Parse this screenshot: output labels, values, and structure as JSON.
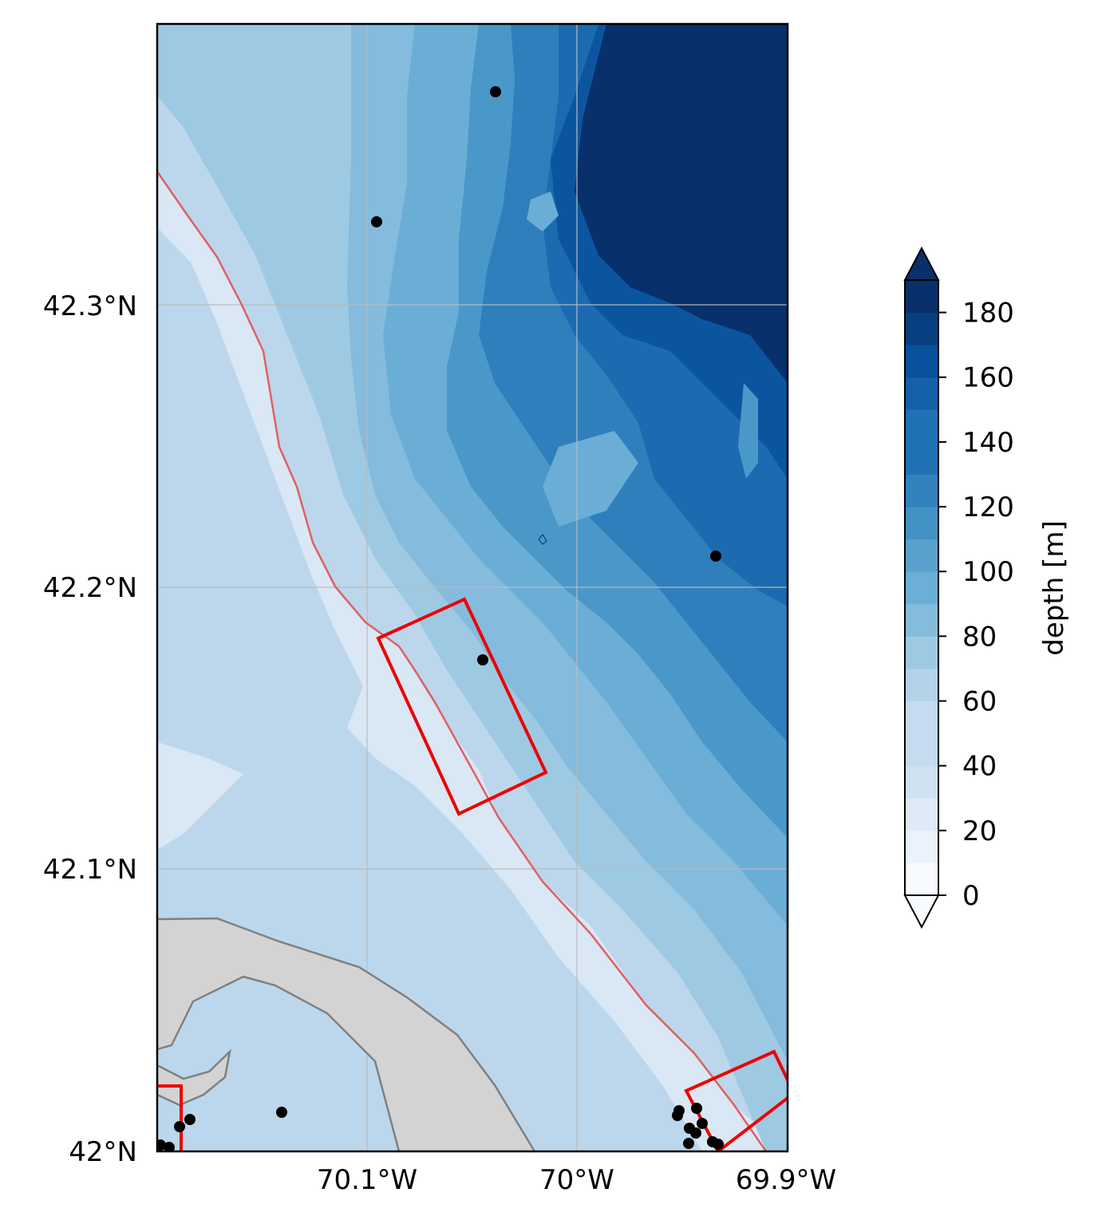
{
  "map": {
    "lat_ticks": [
      "42.3°N",
      "42.2°N",
      "42.1°N",
      "42°N"
    ],
    "lon_ticks": [
      "70.1°W",
      "70°W",
      "69.9°W"
    ],
    "lon_range": [
      -70.2,
      -69.9
    ],
    "lat_range": [
      42.0,
      42.4
    ],
    "colors": {
      "land": "#d3d3d3",
      "coastline": "#808080",
      "boxes": "#ee0000",
      "isobath": "#e06060",
      "points": "#000000",
      "gridlines": "#bbbbbb"
    }
  },
  "colorbar": {
    "label": "depth [m]",
    "ticks": [
      "0",
      "20",
      "40",
      "60",
      "80",
      "100",
      "120",
      "140",
      "160",
      "180"
    ],
    "tick_values": [
      0,
      20,
      40,
      60,
      80,
      100,
      120,
      140,
      160,
      180
    ],
    "extend": "both",
    "colormap": "Blues"
  }
}
